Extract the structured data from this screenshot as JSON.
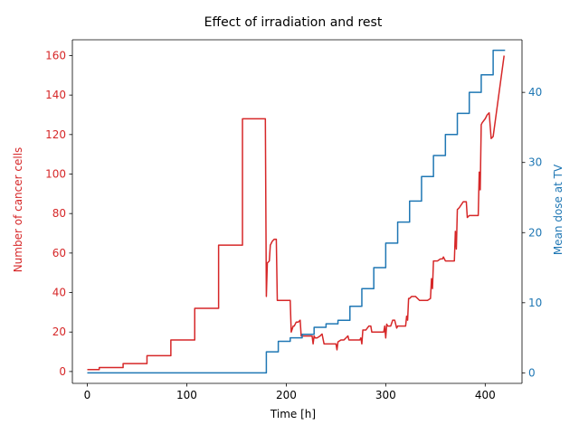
{
  "chart_data": {
    "type": "line",
    "title": "Effect of irradiation and rest",
    "xlabel": "Time [h]",
    "ylabel_left": "Number of cancer cells",
    "ylabel_right": "Mean dose at TV",
    "xlim": [
      -15,
      437
    ],
    "ylim_left": [
      -6,
      168
    ],
    "ylim_right": [
      -1.5,
      47.5
    ],
    "x_ticks": [
      0,
      100,
      200,
      300,
      400
    ],
    "y_ticks_left": [
      0,
      20,
      40,
      60,
      80,
      100,
      120,
      140,
      160
    ],
    "y_ticks_right": [
      0,
      10,
      20,
      30,
      40
    ],
    "grid": false,
    "colors": {
      "left": "#d62728",
      "right": "#1f77b4",
      "text": "#000000"
    },
    "series": [
      {
        "name": "Number of cancer cells",
        "axis": "left",
        "color": "#d62728",
        "x": [
          0,
          12,
          12,
          36,
          36,
          60,
          60,
          84,
          84,
          108,
          108,
          132,
          132,
          156,
          156,
          179,
          180,
          181,
          183,
          184,
          186,
          188,
          190,
          191,
          192,
          196,
          204,
          205,
          207,
          208,
          210,
          212,
          214,
          215,
          216,
          220,
          226,
          227,
          228,
          229,
          231,
          234,
          236,
          238,
          239,
          240,
          243,
          248,
          250,
          251,
          252,
          255,
          258,
          260,
          262,
          263,
          264,
          270,
          274,
          275,
          276,
          277,
          280,
          283,
          285,
          286,
          288,
          295,
          298,
          299,
          300,
          301,
          302,
          305,
          307,
          309,
          311,
          312,
          318,
          320,
          321,
          322,
          323,
          324,
          326,
          330,
          334,
          336,
          342,
          345,
          346,
          347,
          348,
          352,
          355,
          357,
          358,
          360,
          366,
          369,
          370,
          371,
          372,
          374,
          378,
          381,
          382,
          384,
          393,
          394,
          395,
          396,
          397,
          400,
          402,
          404,
          406,
          408,
          419
        ],
        "y": [
          1,
          1,
          2,
          2,
          4,
          4,
          8,
          8,
          16,
          16,
          32,
          32,
          64,
          64,
          128,
          128,
          38,
          55,
          56,
          64,
          66,
          67,
          67,
          36,
          36,
          36,
          36,
          20,
          23,
          23,
          25,
          25,
          26,
          18,
          18,
          18,
          18,
          14,
          18,
          17,
          17,
          18,
          19,
          14,
          14,
          14,
          14,
          14,
          14,
          11,
          15,
          16,
          16,
          17,
          18,
          16,
          16,
          16,
          16,
          17,
          14,
          21,
          21,
          23,
          23,
          20,
          20,
          20,
          20,
          23,
          17,
          24,
          23,
          23,
          26,
          26,
          22,
          23,
          23,
          23,
          28,
          26,
          37,
          37,
          38,
          38,
          36,
          36,
          36,
          37,
          47,
          42,
          56,
          56,
          57,
          57,
          58,
          56,
          56,
          56,
          71,
          62,
          82,
          83,
          86,
          86,
          78,
          79,
          79,
          101,
          92,
          125,
          126,
          128,
          130,
          131,
          118,
          119,
          160
        ]
      },
      {
        "name": "Mean dose at TV",
        "axis": "right",
        "color": "#1f77b4",
        "x": [
          0,
          180,
          180,
          180,
          180,
          180,
          180,
          180,
          180,
          180,
          180,
          180,
          180,
          180,
          180,
          180,
          180,
          180,
          180,
          192,
          192,
          204,
          204,
          216,
          216,
          228,
          228,
          240,
          240,
          252,
          252,
          264,
          264,
          276,
          276,
          288,
          288,
          300,
          300,
          312,
          312,
          324,
          324,
          336,
          336,
          348,
          348,
          360,
          360,
          372,
          372,
          384,
          384,
          396,
          396,
          408,
          408,
          420
        ],
        "y": [
          0,
          0,
          3,
          3,
          3,
          3,
          3,
          3,
          3,
          3,
          3,
          3,
          3,
          3,
          3,
          3,
          3,
          3,
          3,
          3,
          4.5,
          4.5,
          5,
          5,
          5.5,
          5.5,
          6.5,
          6.5,
          7,
          7,
          7.5,
          7.5,
          9.5,
          9.5,
          12,
          12,
          15,
          15,
          18.5,
          18.5,
          21.5,
          21.5,
          24.5,
          24.5,
          28,
          28,
          31,
          31,
          34,
          34,
          37,
          37,
          40,
          40,
          42.5,
          42.5,
          46,
          46
        ]
      }
    ]
  }
}
